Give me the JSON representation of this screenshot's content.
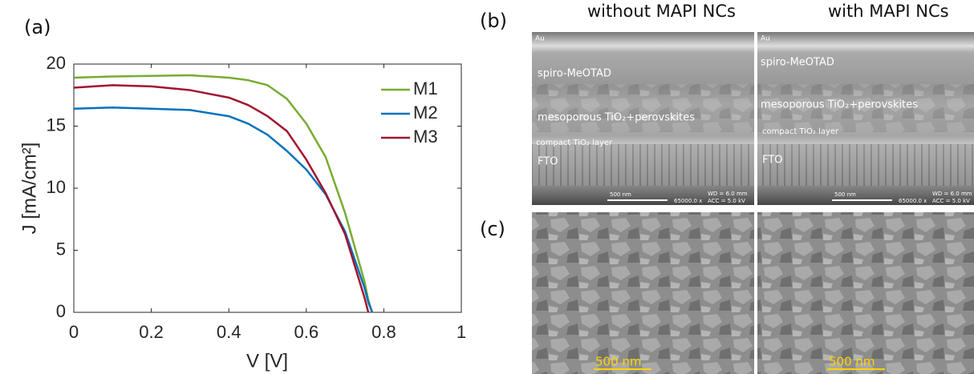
{
  "chart_data": {
    "type": "line",
    "panel_label": "(a)",
    "x_label": "V [V]",
    "y_label": "J [mA/cm²]",
    "x": [
      0,
      0.1,
      0.2,
      0.3,
      0.4,
      0.45,
      0.5,
      0.55,
      0.6,
      0.65,
      0.7,
      0.75,
      0.76,
      0.77
    ],
    "series": [
      {
        "name": "M1",
        "color": "#77ac30",
        "values": [
          18.9,
          19.0,
          19.05,
          19.1,
          18.9,
          18.7,
          18.3,
          17.2,
          15.2,
          12.5,
          8.0,
          2.5,
          1.0,
          0
        ]
      },
      {
        "name": "M2",
        "color": "#0072bd",
        "values": [
          16.4,
          16.5,
          16.4,
          16.3,
          15.8,
          15.2,
          14.3,
          13.0,
          11.5,
          9.5,
          6.5,
          2.0,
          0.8,
          0
        ]
      },
      {
        "name": "M3",
        "color": "#a2142f",
        "values": [
          18.1,
          18.3,
          18.2,
          17.9,
          17.3,
          16.7,
          15.8,
          14.6,
          12.3,
          9.6,
          6.3,
          1.2,
          0,
          null
        ]
      }
    ],
    "xlim": [
      0,
      1
    ],
    "xticks": [
      0,
      0.2,
      0.4,
      0.6,
      0.8,
      1
    ],
    "ylim": [
      0,
      20
    ],
    "yticks": [
      0,
      5,
      10,
      15,
      20
    ],
    "grid": false,
    "legend": "upper-right"
  },
  "sem": {
    "label_b": "(b)",
    "label_c": "(c)",
    "headers": [
      "without MAPI NCs",
      "with MAPI NCs"
    ],
    "cross_section": {
      "au": "Au",
      "spiro": "spiro-MeOTAD",
      "meso": "mesoporous TiO₂+perovskites",
      "compact": "compact TiO₂ layer",
      "fto": "FTO",
      "scale": "500 nm",
      "mag": "65000.0 x",
      "wd": "WD =  6.0 mm",
      "acc": "ACC =  5.0 kV"
    },
    "top_scale": "500 nm"
  }
}
